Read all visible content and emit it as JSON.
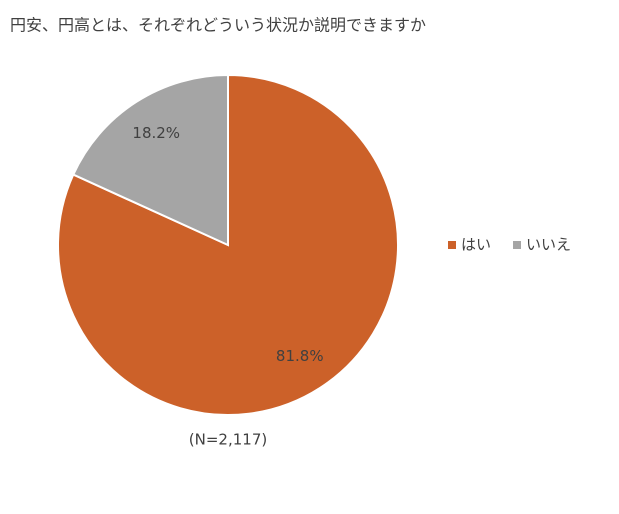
{
  "chart_data": {
    "type": "pie",
    "title": "円安、円高とは、それぞれどういう状況か説明できますか",
    "categories": [
      "はい",
      "いいえ"
    ],
    "values": [
      81.8,
      18.2
    ],
    "value_labels": [
      "81.8%",
      "18.2%"
    ],
    "colors": [
      "#cc6129",
      "#a5a5a5"
    ],
    "note": "(N=2,117)",
    "legend": "right"
  }
}
